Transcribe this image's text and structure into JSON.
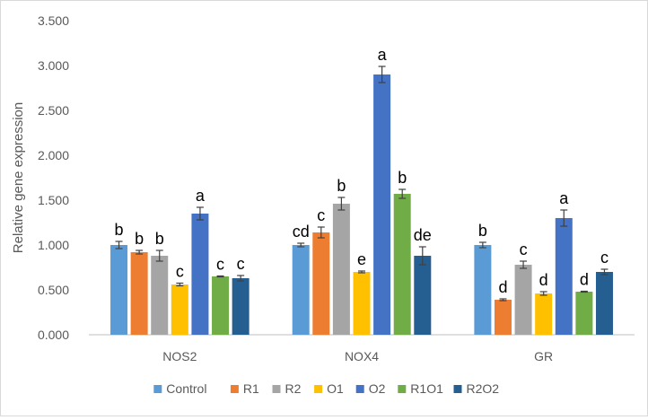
{
  "chart_data": {
    "type": "bar",
    "title": "",
    "xlabel": "",
    "ylabel": "Relative gene expression",
    "ylim": [
      0,
      3.5
    ],
    "yticks": [
      "0.000",
      "0.500",
      "1.000",
      "1.500",
      "2.000",
      "2.500",
      "3.000",
      "3.500"
    ],
    "categories": [
      "NOS2",
      "NOX4",
      "GR"
    ],
    "series": [
      {
        "name": "Control",
        "color": "#5b9bd5",
        "values": [
          1.0,
          1.0,
          1.0
        ],
        "errors": [
          0.04,
          0.02,
          0.03
        ],
        "labels": [
          "b",
          "cd",
          "b"
        ]
      },
      {
        "name": "R1",
        "color": "#ed7d31",
        "values": [
          0.92,
          1.14,
          0.39
        ],
        "errors": [
          0.02,
          0.06,
          0.01
        ],
        "labels": [
          "b",
          "c",
          "d"
        ]
      },
      {
        "name": "R2",
        "color": "#a5a5a5",
        "values": [
          0.88,
          1.46,
          0.78
        ],
        "errors": [
          0.06,
          0.07,
          0.04
        ],
        "labels": [
          "b",
          "b",
          "c"
        ]
      },
      {
        "name": "O1",
        "color": "#ffc000",
        "values": [
          0.56,
          0.7,
          0.46
        ],
        "errors": [
          0.015,
          0.01,
          0.02
        ],
        "labels": [
          "c",
          "e",
          "d"
        ]
      },
      {
        "name": "O2",
        "color": "#4472c4",
        "values": [
          1.35,
          2.9,
          1.3
        ],
        "errors": [
          0.07,
          0.09,
          0.09
        ],
        "labels": [
          "a",
          "a",
          "a"
        ]
      },
      {
        "name": "R1O1",
        "color": "#70ad47",
        "values": [
          0.65,
          1.57,
          0.48
        ],
        "errors": [
          0.005,
          0.05,
          0.005
        ],
        "labels": [
          "c",
          "b",
          "d"
        ]
      },
      {
        "name": "R2O2",
        "color": "#255e91",
        "values": [
          0.63,
          0.88,
          0.7
        ],
        "errors": [
          0.03,
          0.1,
          0.03
        ],
        "labels": [
          "c",
          "de",
          "c"
        ]
      }
    ],
    "legend_position": "bottom",
    "grid": false
  }
}
